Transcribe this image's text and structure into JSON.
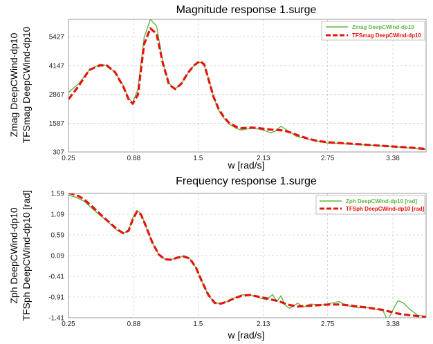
{
  "colors": {
    "zline": "#5fb544",
    "tfsline": "#e8120c"
  },
  "chart_data": [
    {
      "type": "line",
      "title": "Magnitude response 1.surge",
      "xlabel": "w [rad/s]",
      "ylabel_lines": [
        "Zmag DeepCWind-dp10",
        "TFSmag DeepCWind-dp10"
      ],
      "xlim": [
        0.25,
        3.7
      ],
      "ylim": [
        307,
        6200
      ],
      "xticks": [
        "0.25",
        "0.88",
        "1.5",
        "2.13",
        "2.75",
        "3.38"
      ],
      "yticks": [
        "307",
        "1587",
        "2867",
        "4147",
        "5427"
      ],
      "grid": true,
      "legend_position": "top-right",
      "series": [
        {
          "name": "Zmag DeepCWind-dp10",
          "style": "solid",
          "x": [
            0.25,
            0.35,
            0.45,
            0.55,
            0.62,
            0.7,
            0.78,
            0.83,
            0.87,
            0.92,
            0.98,
            1.04,
            1.1,
            1.16,
            1.22,
            1.28,
            1.34,
            1.4,
            1.46,
            1.52,
            1.56,
            1.6,
            1.65,
            1.7,
            1.75,
            1.8,
            1.87,
            1.92,
            1.97,
            2.02,
            2.08,
            2.15,
            2.2,
            2.25,
            2.3,
            2.35,
            2.4,
            2.45,
            2.5,
            2.56,
            2.62,
            2.68,
            2.75,
            2.85,
            2.95,
            3.05,
            3.15,
            3.25,
            3.35,
            3.45,
            3.55,
            3.65,
            3.7
          ],
          "y": [
            2950,
            3350,
            3950,
            4200,
            4150,
            3850,
            3250,
            2700,
            2500,
            3100,
            5400,
            6200,
            5900,
            4300,
            3350,
            3120,
            3350,
            3800,
            4150,
            4300,
            4150,
            3600,
            2750,
            2150,
            1800,
            1550,
            1350,
            1280,
            1330,
            1350,
            1330,
            1250,
            1150,
            1250,
            1450,
            1300,
            1150,
            1000,
            950,
            880,
            820,
            760,
            700,
            690,
            660,
            640,
            610,
            580,
            560,
            520,
            480,
            430,
            420
          ]
        },
        {
          "name": "TFSmag DeepCWind-dp10",
          "style": "dashed",
          "x": [
            0.25,
            0.35,
            0.45,
            0.55,
            0.62,
            0.7,
            0.78,
            0.83,
            0.87,
            0.92,
            0.98,
            1.04,
            1.1,
            1.16,
            1.22,
            1.28,
            1.34,
            1.4,
            1.46,
            1.52,
            1.56,
            1.6,
            1.65,
            1.7,
            1.75,
            1.8,
            1.87,
            1.92,
            1.97,
            2.02,
            2.08,
            2.15,
            2.2,
            2.25,
            2.3,
            2.35,
            2.4,
            2.45,
            2.5,
            2.56,
            2.62,
            2.68,
            2.75,
            2.85,
            2.95,
            3.05,
            3.15,
            3.25,
            3.35,
            3.45,
            3.55,
            3.65,
            3.7
          ],
          "y": [
            2650,
            3250,
            3950,
            4150,
            4150,
            3850,
            3200,
            2650,
            2450,
            2850,
            5100,
            5800,
            5550,
            4250,
            3300,
            3100,
            3350,
            3800,
            4150,
            4350,
            4200,
            3550,
            2750,
            2200,
            1850,
            1600,
            1420,
            1360,
            1380,
            1390,
            1370,
            1330,
            1300,
            1290,
            1270,
            1230,
            1160,
            1070,
            990,
            900,
            830,
            780,
            740,
            710,
            680,
            650,
            620,
            590,
            560,
            530,
            500,
            460,
            440
          ]
        }
      ]
    },
    {
      "type": "line",
      "title": "Frequency response 1.surge",
      "xlabel": "w [rad/s]",
      "ylabel_lines": [
        "Zph DeepCWind-dp10",
        "TFSph DeepCWind-dp10 [rad]"
      ],
      "xlim": [
        0.25,
        3.7
      ],
      "ylim": [
        -1.41,
        1.59
      ],
      "xticks": [
        "0.25",
        "0.88",
        "1.5",
        "2.13",
        "2.75",
        "3.38"
      ],
      "yticks": [
        "1.59",
        "1.09",
        "0.59",
        "0.09",
        "-0.41",
        "-0.91",
        "-1.41"
      ],
      "grid": true,
      "legend_position": "top-right",
      "series": [
        {
          "name": "Zph DeepCWind-dp10 [rad]",
          "style": "solid",
          "x": [
            0.25,
            0.32,
            0.4,
            0.48,
            0.56,
            0.64,
            0.72,
            0.78,
            0.83,
            0.87,
            0.91,
            0.95,
            1.0,
            1.06,
            1.12,
            1.18,
            1.24,
            1.3,
            1.36,
            1.42,
            1.48,
            1.54,
            1.6,
            1.66,
            1.72,
            1.78,
            1.85,
            1.92,
            2.0,
            2.08,
            2.16,
            2.22,
            2.26,
            2.3,
            2.34,
            2.38,
            2.42,
            2.46,
            2.52,
            2.58,
            2.64,
            2.7,
            2.78,
            2.86,
            2.92,
            2.98,
            3.05,
            3.12,
            3.2,
            3.28,
            3.33,
            3.38,
            3.43,
            3.48,
            3.55,
            3.62,
            3.7
          ],
          "y": [
            1.55,
            1.5,
            1.4,
            1.22,
            1.05,
            0.88,
            0.7,
            0.62,
            0.7,
            1.0,
            1.18,
            1.1,
            0.78,
            0.4,
            0.12,
            0.0,
            -0.01,
            0.04,
            0.07,
            0.02,
            -0.2,
            -0.55,
            -0.87,
            -1.05,
            -1.07,
            -1.02,
            -0.93,
            -0.86,
            -0.85,
            -0.92,
            -0.98,
            -0.85,
            -1.02,
            -0.88,
            -1.1,
            -1.18,
            -1.13,
            -1.06,
            -1.15,
            -1.08,
            -1.09,
            -1.1,
            -1.06,
            -1.02,
            -1.1,
            -1.14,
            -1.17,
            -1.16,
            -1.2,
            -1.22,
            -1.48,
            -1.22,
            -1.0,
            -1.05,
            -1.22,
            -1.35,
            -1.38
          ]
        },
        {
          "name": "TFSph DeepCWind-dp10 [rad]",
          "style": "dashed",
          "x": [
            0.25,
            0.32,
            0.4,
            0.48,
            0.56,
            0.64,
            0.72,
            0.78,
            0.83,
            0.87,
            0.91,
            0.95,
            1.0,
            1.06,
            1.12,
            1.18,
            1.24,
            1.3,
            1.36,
            1.42,
            1.48,
            1.54,
            1.6,
            1.66,
            1.72,
            1.78,
            1.85,
            1.92,
            2.0,
            2.08,
            2.16,
            2.22,
            2.26,
            2.3,
            2.34,
            2.38,
            2.42,
            2.46,
            2.52,
            2.58,
            2.64,
            2.7,
            2.78,
            2.86,
            2.92,
            2.98,
            3.05,
            3.12,
            3.2,
            3.28,
            3.33,
            3.38,
            3.43,
            3.48,
            3.55,
            3.62,
            3.7
          ],
          "y": [
            1.6,
            1.56,
            1.45,
            1.27,
            1.08,
            0.9,
            0.72,
            0.63,
            0.69,
            0.96,
            1.15,
            1.08,
            0.78,
            0.4,
            0.12,
            0.0,
            -0.01,
            0.04,
            0.07,
            0.02,
            -0.2,
            -0.55,
            -0.86,
            -1.05,
            -1.07,
            -1.02,
            -0.94,
            -0.88,
            -0.86,
            -0.9,
            -0.94,
            -0.98,
            -1.0,
            -1.03,
            -1.07,
            -1.1,
            -1.12,
            -1.14,
            -1.13,
            -1.12,
            -1.11,
            -1.1,
            -1.09,
            -1.09,
            -1.1,
            -1.12,
            -1.14,
            -1.16,
            -1.19,
            -1.22,
            -1.25,
            -1.28,
            -1.31,
            -1.33,
            -1.35,
            -1.37,
            -1.39
          ]
        }
      ]
    }
  ]
}
